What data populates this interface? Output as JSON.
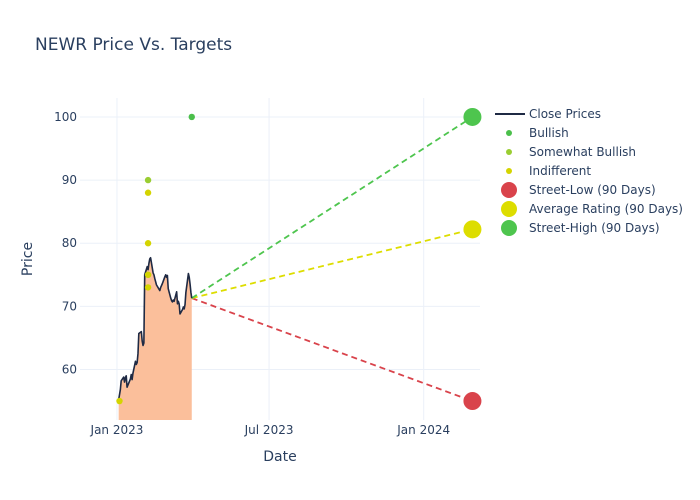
{
  "chart_data": {
    "type": "line",
    "title": "NEWR Price Vs. Targets",
    "xlabel": "Date",
    "ylabel": "Price",
    "x_range": [
      "2022-11-18",
      "2024-03-08"
    ],
    "ylim": [
      52,
      103
    ],
    "x_ticks": [
      {
        "date": "2023-01-01",
        "label": "Jan 2023"
      },
      {
        "date": "2023-07-01",
        "label": "Jul 2023"
      },
      {
        "date": "2024-01-01",
        "label": "Jan 2024"
      }
    ],
    "y_ticks": [
      60,
      70,
      80,
      90,
      100
    ],
    "grid": true,
    "legend_position": "top-right",
    "colors": {
      "close": "#1f2a44",
      "fill": "#fbbf9b",
      "bullish": "#4bbf4b",
      "somewhat_bullish": "#9acd32",
      "indifferent": "#d4d400",
      "street_low": "#d9434b",
      "average": "#dddd00",
      "street_high": "#4ec54e"
    },
    "legend": [
      {
        "key": "close",
        "label": "Close Prices",
        "kind": "line"
      },
      {
        "key": "bullish",
        "label": "Bullish",
        "kind": "small-dot"
      },
      {
        "key": "somewhat_bullish",
        "label": "Somewhat Bullish",
        "kind": "small-dot"
      },
      {
        "key": "indifferent",
        "label": "Indifferent",
        "kind": "small-dot"
      },
      {
        "key": "street_low",
        "label": "Street-Low (90 Days)",
        "kind": "big-dot"
      },
      {
        "key": "average",
        "label": "Average Rating (90 Days)",
        "kind": "big-dot"
      },
      {
        "key": "street_high",
        "label": "Street-High (90 Days)",
        "kind": "big-dot"
      }
    ],
    "close_prices": [
      [
        "2023-01-03",
        55.2
      ],
      [
        "2023-01-04",
        56.0
      ],
      [
        "2023-01-05",
        56.8
      ],
      [
        "2023-01-06",
        58.2
      ],
      [
        "2023-01-09",
        58.8
      ],
      [
        "2023-01-10",
        58.0
      ],
      [
        "2023-01-11",
        58.7
      ],
      [
        "2023-01-12",
        59.0
      ],
      [
        "2023-01-13",
        57.2
      ],
      [
        "2023-01-17",
        58.5
      ],
      [
        "2023-01-18",
        59.2
      ],
      [
        "2023-01-19",
        58.4
      ],
      [
        "2023-01-20",
        59.4
      ],
      [
        "2023-01-23",
        61.3
      ],
      [
        "2023-01-24",
        60.8
      ],
      [
        "2023-01-25",
        61.1
      ],
      [
        "2023-01-26",
        62.5
      ],
      [
        "2023-01-27",
        65.7
      ],
      [
        "2023-01-30",
        66.0
      ],
      [
        "2023-01-31",
        64.5
      ],
      [
        "2023-02-01",
        63.8
      ],
      [
        "2023-02-02",
        64.2
      ],
      [
        "2023-02-03",
        75.0
      ],
      [
        "2023-02-06",
        76.3
      ],
      [
        "2023-02-07",
        75.8
      ],
      [
        "2023-02-08",
        76.8
      ],
      [
        "2023-02-09",
        77.5
      ],
      [
        "2023-02-10",
        77.7
      ],
      [
        "2023-02-13",
        75.3
      ],
      [
        "2023-02-14",
        75.0
      ],
      [
        "2023-02-15",
        74.4
      ],
      [
        "2023-02-16",
        73.9
      ],
      [
        "2023-02-17",
        73.4
      ],
      [
        "2023-02-21",
        72.5
      ],
      [
        "2023-02-22",
        73.0
      ],
      [
        "2023-02-23",
        73.3
      ],
      [
        "2023-02-24",
        73.6
      ],
      [
        "2023-02-27",
        74.7
      ],
      [
        "2023-02-28",
        75.0
      ],
      [
        "2023-03-01",
        74.6
      ],
      [
        "2023-03-02",
        74.9
      ],
      [
        "2023-03-03",
        72.8
      ],
      [
        "2023-03-06",
        71.3
      ],
      [
        "2023-03-07",
        70.9
      ],
      [
        "2023-03-08",
        70.7
      ],
      [
        "2023-03-09",
        71.0
      ],
      [
        "2023-03-10",
        70.8
      ],
      [
        "2023-03-13",
        72.3
      ],
      [
        "2023-03-14",
        70.4
      ],
      [
        "2023-03-15",
        70.8
      ],
      [
        "2023-03-16",
        70.4
      ],
      [
        "2023-03-17",
        68.8
      ],
      [
        "2023-03-20",
        69.5
      ],
      [
        "2023-03-21",
        69.9
      ],
      [
        "2023-03-22",
        69.6
      ],
      [
        "2023-03-23",
        70.3
      ],
      [
        "2023-03-24",
        72.2
      ],
      [
        "2023-03-27",
        75.2
      ],
      [
        "2023-03-28",
        74.6
      ],
      [
        "2023-03-29",
        73.5
      ],
      [
        "2023-03-30",
        72.2
      ],
      [
        "2023-03-31",
        71.3
      ]
    ],
    "ratings": [
      {
        "category": "bullish",
        "date": "2023-03-31",
        "value": 100
      },
      {
        "category": "somewhat_bullish",
        "date": "2023-02-07",
        "value": 90
      },
      {
        "category": "indifferent",
        "date": "2023-02-07",
        "value": 88
      },
      {
        "category": "indifferent",
        "date": "2023-02-07",
        "value": 80
      },
      {
        "category": "somewhat_bullish",
        "date": "2023-02-07",
        "value": 75
      },
      {
        "category": "indifferent",
        "date": "2023-02-07",
        "value": 75
      },
      {
        "category": "indifferent",
        "date": "2023-02-07",
        "value": 73
      },
      {
        "category": "indifferent",
        "date": "2023-01-04",
        "value": 55
      }
    ],
    "target_projection": {
      "start_date": "2023-03-31",
      "start_value": 71.3,
      "end_date": "2024-02-28",
      "street_low": 55,
      "average": 82.2,
      "street_high": 100
    }
  }
}
